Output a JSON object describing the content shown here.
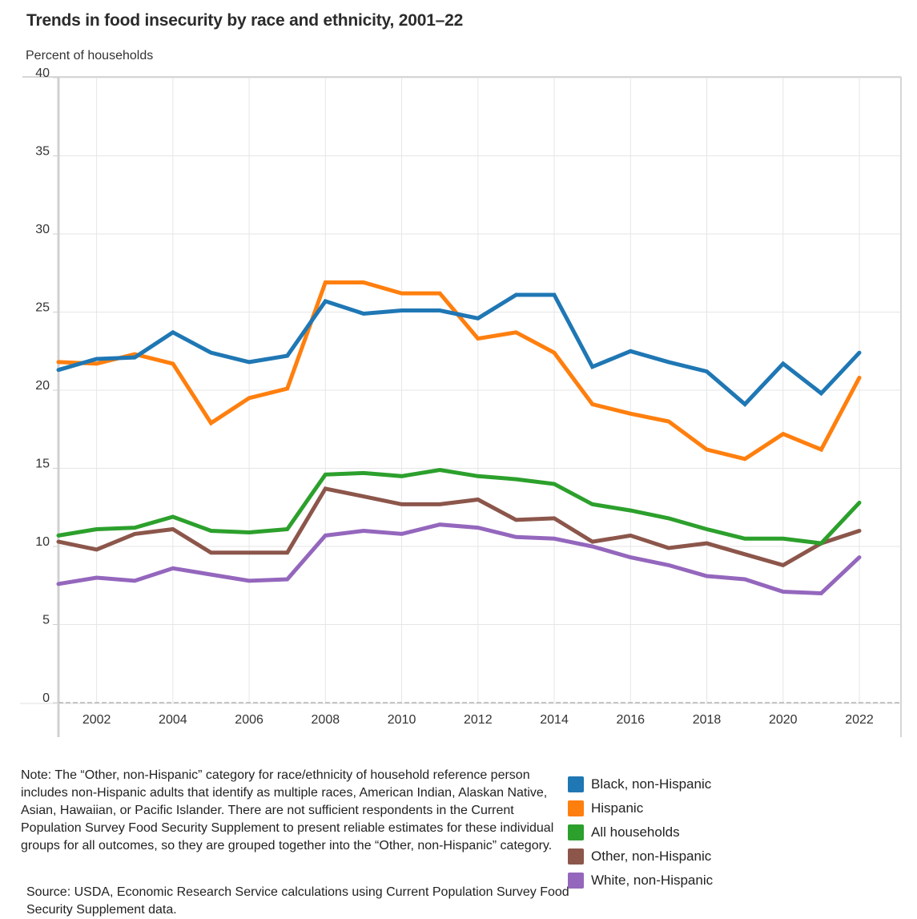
{
  "title": "Trends in food insecurity by race and ethnicity, 2001–22",
  "subtitle": "Percent of households",
  "note": "Note: The “Other, non-Hispanic” category for race/ethnicity of household reference person includes non-Hispanic adults that identify as multiple races, American Indian, Alaskan Native, Asian, Hawaiian, or Pacific Islander. There are not sufficient respondents in the Current Population Survey Food Security Supplement to present reliable estimates for these individual groups for all outcomes, so they are grouped together into the “Other, non-Hispanic” category.",
  "source": "Source: USDA, Economic Research Service calculations using Current Population Survey Food Security Supplement data.",
  "chart_data": {
    "type": "line",
    "title": "Trends in food insecurity by race and ethnicity, 2001–22",
    "xlabel": "",
    "ylabel": "Percent of households",
    "x": [
      2001,
      2002,
      2003,
      2004,
      2005,
      2006,
      2007,
      2008,
      2009,
      2010,
      2011,
      2012,
      2013,
      2014,
      2015,
      2016,
      2017,
      2018,
      2019,
      2020,
      2021,
      2022
    ],
    "xticks": [
      "2002",
      "2004",
      "2006",
      "2008",
      "2010",
      "2012",
      "2014",
      "2016",
      "2018",
      "2020",
      "2022"
    ],
    "yticks": [
      "0",
      "5",
      "10",
      "15",
      "20",
      "25",
      "30",
      "35",
      "40"
    ],
    "ylim": [
      0,
      40
    ],
    "xlim": [
      2001,
      2023.1
    ],
    "grid": true,
    "legend_position": "bottom-right",
    "series": [
      {
        "name": "Black, non-Hispanic",
        "color": "#1f77b4",
        "values": [
          21.3,
          22.0,
          22.1,
          23.7,
          22.4,
          21.8,
          22.2,
          25.7,
          24.9,
          25.1,
          25.1,
          24.6,
          26.1,
          26.1,
          21.5,
          22.5,
          21.8,
          21.2,
          19.1,
          21.7,
          19.8,
          22.4
        ]
      },
      {
        "name": "Hispanic",
        "color": "#ff7f0e",
        "values": [
          21.8,
          21.7,
          22.3,
          21.7,
          17.9,
          19.5,
          20.1,
          26.9,
          26.9,
          26.2,
          26.2,
          23.3,
          23.7,
          22.4,
          19.1,
          18.5,
          18.0,
          16.2,
          15.6,
          17.2,
          16.2,
          20.8
        ]
      },
      {
        "name": "All households",
        "color": "#2ca02c",
        "values": [
          10.7,
          11.1,
          11.2,
          11.9,
          11.0,
          10.9,
          11.1,
          14.6,
          14.7,
          14.5,
          14.9,
          14.5,
          14.3,
          14.0,
          12.7,
          12.3,
          11.8,
          11.1,
          10.5,
          10.5,
          10.2,
          12.8
        ]
      },
      {
        "name": "Other, non-Hispanic",
        "color": "#8c564b",
        "values": [
          10.3,
          9.8,
          10.8,
          11.1,
          9.6,
          9.6,
          9.6,
          13.7,
          13.2,
          12.7,
          12.7,
          13.0,
          11.7,
          11.8,
          10.3,
          10.7,
          9.9,
          10.2,
          9.5,
          8.8,
          10.2,
          11.0
        ]
      },
      {
        "name": "White, non-Hispanic",
        "color": "#9467bd",
        "values": [
          7.6,
          8.0,
          7.8,
          8.6,
          8.2,
          7.8,
          7.9,
          10.7,
          11.0,
          10.8,
          11.4,
          11.2,
          10.6,
          10.5,
          10.0,
          9.3,
          8.8,
          8.1,
          7.9,
          7.1,
          7.0,
          9.3
        ]
      }
    ]
  }
}
